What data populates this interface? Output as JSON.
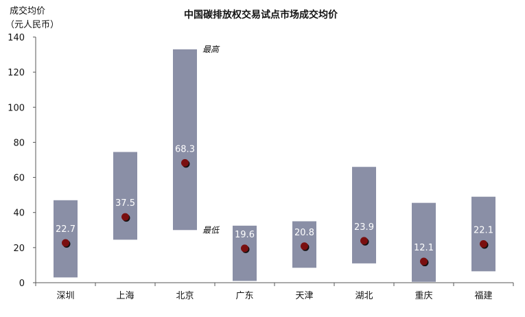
{
  "chart_data": {
    "type": "bar",
    "title": "中国碳排放权交易试点市场成交均价",
    "ylabel_line1": "成交均价",
    "ylabel_line2": "（元人民币）",
    "ylim": [
      0,
      140
    ],
    "yticks": [
      0,
      20,
      40,
      60,
      80,
      100,
      120,
      140
    ],
    "grid": false,
    "categories": [
      "深圳",
      "上海",
      "北京",
      "广东",
      "天津",
      "湖北",
      "重庆",
      "福建"
    ],
    "series": [
      {
        "name": "最高",
        "values": [
          47,
          74.5,
          133,
          32.5,
          35,
          66,
          45.5,
          49
        ]
      },
      {
        "name": "最低",
        "values": [
          3,
          24.5,
          30,
          1,
          8.5,
          11,
          0.5,
          6.5
        ]
      },
      {
        "name": "均价",
        "values": [
          22.7,
          37.5,
          68.3,
          19.6,
          20.8,
          23.9,
          12.1,
          22.1
        ]
      }
    ],
    "value_labels": [
      "22.7",
      "37.5",
      "68.3",
      "19.6",
      "20.8",
      "23.9",
      "12.1",
      "22.1"
    ],
    "annotations": {
      "high": "最高",
      "low": "最低"
    },
    "colors": {
      "bar": "#8a8fa6",
      "dot": "#7a0f0f",
      "dot_shadow": "#111111",
      "axis": "#555555"
    }
  }
}
